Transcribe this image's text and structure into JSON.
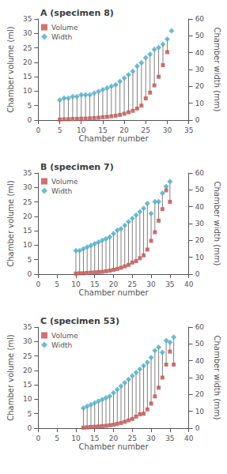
{
  "chart_data": [
    {
      "type": "scatter",
      "title": "A (specimen 8)",
      "xlabel": "Chamber number",
      "ylabel": "Chamber volume (ml)",
      "y2label": "Chamber width (mm)",
      "xlim": [
        0,
        35
      ],
      "xticks": [
        0,
        5,
        10,
        15,
        20,
        25,
        30,
        35
      ],
      "ylim": [
        0,
        35
      ],
      "yticks": [
        0,
        5,
        10,
        15,
        20,
        25,
        30,
        35
      ],
      "y2lim": [
        0,
        60
      ],
      "y2ticks": [
        0,
        10,
        20,
        30,
        40,
        50,
        60
      ],
      "grid": false,
      "legend": "upper left",
      "series": [
        {
          "name": "Volume",
          "color": "#c0504d",
          "marker": "square",
          "x": [
            5,
            6,
            7,
            8,
            9,
            10,
            11,
            12,
            13,
            14,
            15,
            16,
            17,
            18,
            19,
            20,
            21,
            22,
            23,
            24,
            25,
            26,
            27,
            28,
            29,
            30
          ],
          "values": [
            0.2,
            0.3,
            0.3,
            0.4,
            0.4,
            0.5,
            0.5,
            0.6,
            0.7,
            0.8,
            1.0,
            1.1,
            1.3,
            1.5,
            1.8,
            2.2,
            2.7,
            3.2,
            4.0,
            5.0,
            7.5,
            9.5,
            12.0,
            15.0,
            19.0,
            23.5
          ]
        },
        {
          "name": "Width",
          "color": "#4bacc6",
          "marker": "diamond",
          "axis": "y2",
          "x": [
            5,
            6,
            7,
            8,
            9,
            10,
            11,
            12,
            13,
            14,
            15,
            16,
            17,
            18,
            19,
            20,
            21,
            22,
            23,
            24,
            25,
            26,
            27,
            28,
            29,
            30,
            31
          ],
          "values": [
            12,
            13,
            13,
            14,
            14,
            15,
            15,
            15,
            16,
            17,
            18,
            19,
            20,
            21,
            23,
            25,
            27,
            29,
            32,
            34,
            37,
            39,
            42,
            43,
            45,
            48,
            53
          ]
        }
      ]
    },
    {
      "type": "scatter",
      "title": "B (specimen 7)",
      "xlabel": "Chamber number",
      "ylabel": "Chamber volume (ml)",
      "y2label": "Chamber width (mm)",
      "xlim": [
        0,
        40
      ],
      "xticks": [
        0,
        5,
        10,
        15,
        20,
        25,
        30,
        35,
        40
      ],
      "ylim": [
        0,
        35
      ],
      "yticks": [
        0,
        5,
        10,
        15,
        20,
        25,
        30,
        35
      ],
      "y2lim": [
        0,
        60
      ],
      "y2ticks": [
        0,
        10,
        20,
        30,
        40,
        50,
        60
      ],
      "grid": false,
      "legend": "upper left",
      "series": [
        {
          "name": "Volume",
          "color": "#c0504d",
          "marker": "square",
          "x": [
            10,
            11,
            12,
            13,
            14,
            15,
            16,
            17,
            18,
            19,
            20,
            21,
            22,
            23,
            24,
            25,
            26,
            27,
            28,
            29,
            30,
            31,
            32,
            33,
            34,
            35
          ],
          "values": [
            0.2,
            0.3,
            0.3,
            0.4,
            0.5,
            0.6,
            0.7,
            0.8,
            1.0,
            1.2,
            1.5,
            1.8,
            2.2,
            2.7,
            3.2,
            4.0,
            4.5,
            5.5,
            6.5,
            8.5,
            11.5,
            14.5,
            18.5,
            22.5,
            29.0,
            25.0
          ]
        },
        {
          "name": "Width",
          "color": "#4bacc6",
          "marker": "diamond",
          "axis": "y2",
          "x": [
            10,
            11,
            12,
            13,
            14,
            15,
            16,
            17,
            18,
            19,
            20,
            21,
            22,
            23,
            24,
            25,
            26,
            27,
            28,
            29,
            30,
            31,
            32,
            33,
            34,
            35
          ],
          "values": [
            14,
            14,
            15,
            16,
            17,
            18,
            19,
            20,
            21,
            22,
            24,
            26,
            27,
            29,
            31,
            33,
            35,
            37,
            39,
            42,
            36,
            43,
            43,
            48,
            52,
            55
          ]
        }
      ]
    },
    {
      "type": "scatter",
      "title": "C (specimen 53)",
      "xlabel": "Chamber number",
      "ylabel": "Chamber volume (ml)",
      "y2label": "Chamber width (mm)",
      "xlim": [
        0,
        40
      ],
      "xticks": [
        0,
        5,
        10,
        15,
        20,
        25,
        30,
        35,
        40
      ],
      "ylim": [
        0,
        35
      ],
      "yticks": [
        0,
        5,
        10,
        15,
        20,
        25,
        30,
        35
      ],
      "y2lim": [
        0,
        60
      ],
      "y2ticks": [
        0,
        10,
        20,
        30,
        40,
        50,
        60
      ],
      "grid": false,
      "legend": "upper left",
      "series": [
        {
          "name": "Volume",
          "color": "#c0504d",
          "marker": "square",
          "x": [
            12,
            13,
            14,
            15,
            16,
            17,
            18,
            19,
            20,
            21,
            22,
            23,
            24,
            25,
            26,
            27,
            28,
            29,
            30,
            31,
            32,
            33,
            34,
            35,
            36
          ],
          "values": [
            0.2,
            0.3,
            0.4,
            0.5,
            0.6,
            0.7,
            0.8,
            1.0,
            1.2,
            1.5,
            1.8,
            2.2,
            2.7,
            3.2,
            4.0,
            4.8,
            5.0,
            6.5,
            8.5,
            11.0,
            14.0,
            17.5,
            22.0,
            26.5,
            22.0
          ]
        },
        {
          "name": "Width",
          "color": "#4bacc6",
          "marker": "diamond",
          "axis": "y2",
          "x": [
            12,
            13,
            14,
            15,
            16,
            17,
            18,
            19,
            20,
            21,
            22,
            23,
            24,
            25,
            26,
            27,
            28,
            29,
            30,
            31,
            32,
            33,
            34,
            35,
            36
          ],
          "values": [
            12,
            13,
            14,
            15,
            16,
            17,
            18,
            19,
            21,
            23,
            25,
            27,
            29,
            31,
            33,
            35,
            37,
            39,
            42,
            46,
            48,
            45,
            52,
            51,
            54
          ]
        }
      ]
    }
  ]
}
